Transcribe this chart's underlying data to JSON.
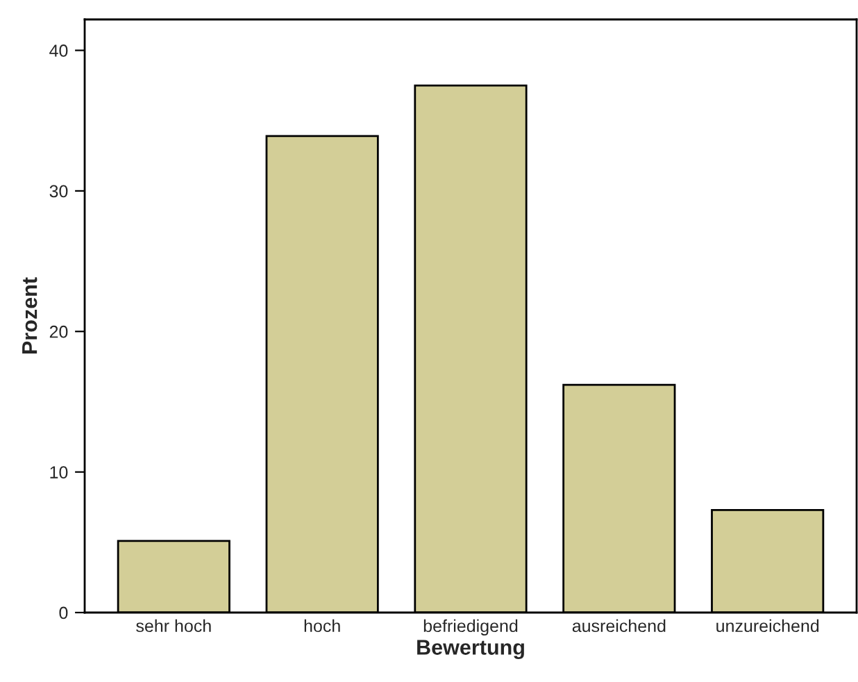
{
  "chart_data": {
    "type": "bar",
    "xlabel": "Bewertung",
    "ylabel": "Prozent",
    "categories": [
      "sehr hoch",
      "hoch",
      "befriedigend",
      "ausreichend",
      "unzureichend"
    ],
    "values": [
      5.1,
      33.9,
      37.5,
      16.2,
      7.3
    ],
    "color": "#d3ce97",
    "ylim": [
      0,
      42.2
    ],
    "yticks": [
      0,
      10,
      20,
      30,
      40
    ],
    "grid": false,
    "legend": false
  }
}
